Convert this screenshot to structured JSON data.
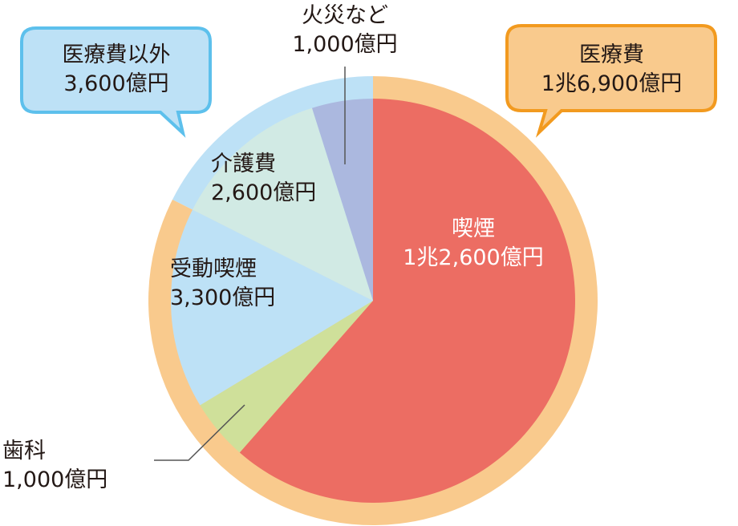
{
  "chart_data": {
    "type": "pie",
    "unit": "億円",
    "slices": [
      {
        "label": "喫煙",
        "value": 12600,
        "text": "1兆2,600億円",
        "color": "#ec6d63"
      },
      {
        "label": "歯科",
        "value": 1000,
        "text": "1,000億円",
        "color": "#cfe09a"
      },
      {
        "label": "受動喫煙",
        "value": 3300,
        "text": "3,300億円",
        "color": "#bde1f6"
      },
      {
        "label": "介護費",
        "value": 2600,
        "text": "2,600億円",
        "color": "#d1eae4"
      },
      {
        "label": "火災など",
        "value": 1000,
        "text": "1,000億円",
        "color": "#abb8df"
      }
    ],
    "outer_ring": [
      {
        "label": "医療費",
        "value": 16900,
        "text": "1兆6,900億円",
        "color": "#f9ca8d",
        "border": "#f29a1f"
      },
      {
        "label": "医療費以外",
        "value": 3600,
        "text": "3,600億円",
        "color": "#bde1f6",
        "border": "#5dc0ec"
      }
    ]
  }
}
